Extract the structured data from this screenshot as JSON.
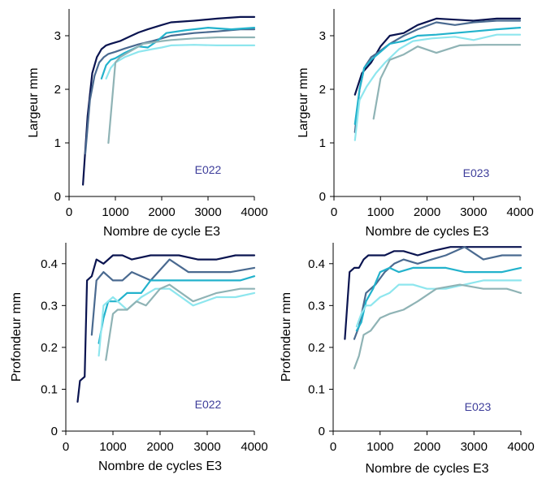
{
  "colors": {
    "navy": "#0a1450",
    "slate": "#4a6a90",
    "cyan": "#22b2cc",
    "pale_cyan": "#8ee6ee",
    "gray_teal": "#8fb3b5",
    "tag": "#3d3d9a"
  },
  "chart_data": [
    {
      "type": "line",
      "tag": "E022",
      "xlabel": "Nombre de cycle E3",
      "ylabel": "Largeur mm",
      "xlim": [
        0,
        4000
      ],
      "ylim": [
        0,
        3.5
      ],
      "xticks": [
        0,
        1000,
        2000,
        3000,
        4000
      ],
      "yticks": [
        0,
        1,
        2,
        3
      ],
      "xtick_labels": [
        "0",
        "1000",
        "2000",
        "3000",
        "4000"
      ],
      "ytick_labels": [
        "0",
        "1",
        "2",
        "3"
      ],
      "grid": false,
      "legend": "none",
      "series": [
        {
          "color": "#0a1450",
          "x": [
            300,
            400,
            500,
            600,
            700,
            800,
            900,
            1100,
            1300,
            1500,
            1700,
            2000,
            2200,
            2700,
            3200,
            3700,
            4000
          ],
          "y": [
            0.22,
            1.5,
            2.3,
            2.6,
            2.75,
            2.82,
            2.85,
            2.9,
            2.98,
            3.06,
            3.12,
            3.2,
            3.25,
            3.28,
            3.32,
            3.35,
            3.35
          ]
        },
        {
          "color": "#4a6a90",
          "x": [
            350,
            450,
            550,
            650,
            750,
            850,
            1000,
            1200,
            1500,
            1800,
            2000,
            2200,
            2700,
            3200,
            3700,
            4000
          ],
          "y": [
            0.8,
            1.8,
            2.25,
            2.5,
            2.6,
            2.66,
            2.7,
            2.76,
            2.84,
            2.9,
            2.95,
            3.0,
            3.05,
            3.08,
            3.12,
            3.12
          ]
        },
        {
          "color": "#22b2cc",
          "x": [
            700,
            800,
            900,
            1000,
            1200,
            1500,
            1700,
            1900,
            2100,
            2500,
            3000,
            3500,
            4000
          ],
          "y": [
            2.2,
            2.45,
            2.55,
            2.58,
            2.68,
            2.8,
            2.78,
            2.9,
            3.05,
            3.1,
            3.15,
            3.12,
            3.15
          ]
        },
        {
          "color": "#8ee6ee",
          "x": [
            800,
            900,
            1000,
            1200,
            1500,
            1800,
            2000,
            2200,
            2700,
            3200,
            3700,
            4000
          ],
          "y": [
            2.2,
            2.4,
            2.5,
            2.6,
            2.7,
            2.75,
            2.78,
            2.82,
            2.83,
            2.82,
            2.82,
            2.82
          ]
        },
        {
          "color": "#8fb3b5",
          "x": [
            850,
            1000,
            1100,
            1300,
            1600,
            2000,
            2200,
            2700,
            3200,
            3700,
            4000
          ],
          "y": [
            1.0,
            2.5,
            2.6,
            2.7,
            2.85,
            2.9,
            2.92,
            2.95,
            2.97,
            2.97,
            2.97
          ]
        }
      ]
    },
    {
      "type": "line",
      "tag": "E023",
      "xlabel": "Nombre de cycles E3",
      "ylabel": "Largeur mm",
      "xlim": [
        0,
        4000
      ],
      "ylim": [
        0,
        3.5
      ],
      "xticks": [
        0,
        1000,
        2000,
        3000,
        4000
      ],
      "yticks": [
        0,
        1,
        2,
        3
      ],
      "xtick_labels": [
        "0",
        "1000",
        "2000",
        "3000",
        "4000"
      ],
      "ytick_labels": [
        "0",
        "1",
        "2",
        "3"
      ],
      "grid": false,
      "legend": "none",
      "series": [
        {
          "color": "#0a1450",
          "x": [
            450,
            600,
            800,
            1000,
            1200,
            1500,
            1800,
            2200,
            2600,
            3000,
            3500,
            4000
          ],
          "y": [
            1.9,
            2.3,
            2.5,
            2.8,
            3.0,
            3.05,
            3.2,
            3.32,
            3.3,
            3.28,
            3.32,
            3.32
          ]
        },
        {
          "color": "#4a6a90",
          "x": [
            450,
            550,
            650,
            800,
            1000,
            1200,
            1500,
            1800,
            2200,
            2600,
            3000,
            3500,
            4000
          ],
          "y": [
            1.2,
            2.0,
            2.4,
            2.6,
            2.72,
            2.85,
            3.0,
            3.12,
            3.25,
            3.2,
            3.25,
            3.28,
            3.28
          ]
        },
        {
          "color": "#22b2cc",
          "x": [
            450,
            550,
            650,
            800,
            1000,
            1200,
            1500,
            1800,
            2200,
            2600,
            3000,
            3500,
            4000
          ],
          "y": [
            1.35,
            2.0,
            2.4,
            2.55,
            2.7,
            2.85,
            2.9,
            3.0,
            3.02,
            3.05,
            3.08,
            3.12,
            3.15
          ]
        },
        {
          "color": "#8ee6ee",
          "x": [
            450,
            550,
            700,
            900,
            1100,
            1400,
            1700,
            2100,
            2600,
            3000,
            3500,
            4000
          ],
          "y": [
            1.05,
            1.8,
            2.05,
            2.3,
            2.5,
            2.75,
            2.9,
            2.95,
            2.98,
            2.92,
            3.02,
            3.02
          ]
        },
        {
          "color": "#8fb3b5",
          "x": [
            850,
            1000,
            1200,
            1500,
            1800,
            2200,
            2700,
            3200,
            3700,
            4000
          ],
          "y": [
            1.45,
            2.2,
            2.55,
            2.65,
            2.8,
            2.68,
            2.82,
            2.83,
            2.83,
            2.83
          ]
        }
      ]
    },
    {
      "type": "line",
      "tag": "E022",
      "xlabel": "Nombre de cycles E3",
      "ylabel": "Profondeur mm",
      "xlim": [
        0,
        4000
      ],
      "ylim": [
        0,
        0.45
      ],
      "xticks": [
        0,
        1000,
        2000,
        3000,
        4000
      ],
      "yticks": [
        0,
        0.1,
        0.2,
        0.3,
        0.4
      ],
      "xtick_labels": [
        "0",
        "1000",
        "2000",
        "3000",
        "4000"
      ],
      "ytick_labels": [
        "0",
        "0.1",
        "0.2",
        "0.3",
        "0.4"
      ],
      "grid": false,
      "legend": "none",
      "series": [
        {
          "color": "#0a1450",
          "x": [
            250,
            300,
            400,
            450,
            550,
            650,
            800,
            1000,
            1200,
            1400,
            1800,
            2100,
            2400,
            2800,
            3200,
            3600,
            4000
          ],
          "y": [
            0.07,
            0.12,
            0.13,
            0.36,
            0.37,
            0.41,
            0.4,
            0.42,
            0.42,
            0.41,
            0.42,
            0.42,
            0.42,
            0.41,
            0.41,
            0.42,
            0.42
          ]
        },
        {
          "color": "#4a6a90",
          "x": [
            550,
            650,
            800,
            1000,
            1200,
            1400,
            1800,
            2200,
            2600,
            3000,
            3500,
            4000
          ],
          "y": [
            0.23,
            0.36,
            0.38,
            0.36,
            0.36,
            0.38,
            0.36,
            0.41,
            0.38,
            0.38,
            0.38,
            0.39
          ]
        },
        {
          "color": "#22b2cc",
          "x": [
            700,
            800,
            900,
            1100,
            1300,
            1600,
            1800,
            2200,
            2700,
            3200,
            3700,
            4000
          ],
          "y": [
            0.21,
            0.27,
            0.31,
            0.31,
            0.33,
            0.33,
            0.36,
            0.36,
            0.36,
            0.36,
            0.36,
            0.37
          ]
        },
        {
          "color": "#8ee6ee",
          "x": [
            700,
            800,
            1000,
            1300,
            1600,
            1900,
            2200,
            2700,
            3200,
            3600,
            4000
          ],
          "y": [
            0.18,
            0.3,
            0.32,
            0.29,
            0.32,
            0.34,
            0.34,
            0.3,
            0.32,
            0.32,
            0.33
          ]
        },
        {
          "color": "#8fb3b5",
          "x": [
            850,
            1000,
            1100,
            1300,
            1500,
            1700,
            2000,
            2200,
            2700,
            3200,
            3700,
            4000
          ],
          "y": [
            0.17,
            0.28,
            0.29,
            0.29,
            0.31,
            0.3,
            0.34,
            0.35,
            0.31,
            0.33,
            0.34,
            0.34
          ]
        }
      ]
    },
    {
      "type": "line",
      "tag": "E023",
      "xlabel": "Nombre de cycles E3",
      "ylabel": "Profondeur mm",
      "xlim": [
        0,
        4000
      ],
      "ylim": [
        0,
        0.45
      ],
      "xticks": [
        0,
        1000,
        2000,
        3000,
        4000
      ],
      "yticks": [
        0,
        0.1,
        0.2,
        0.3,
        0.4
      ],
      "xtick_labels": [
        "0",
        "1000",
        "2000",
        "3000",
        "4000"
      ],
      "ytick_labels": [
        "0",
        "0.1",
        "0.2",
        "0.3",
        "0.4"
      ],
      "grid": false,
      "legend": "none",
      "series": [
        {
          "color": "#0a1450",
          "x": [
            250,
            350,
            450,
            550,
            650,
            750,
            900,
            1100,
            1300,
            1500,
            1800,
            2100,
            2500,
            2800,
            3200,
            3600,
            4000
          ],
          "y": [
            0.22,
            0.38,
            0.39,
            0.39,
            0.41,
            0.42,
            0.42,
            0.42,
            0.43,
            0.43,
            0.42,
            0.43,
            0.44,
            0.44,
            0.44,
            0.44,
            0.44
          ]
        },
        {
          "color": "#4a6a90",
          "x": [
            450,
            550,
            700,
            900,
            1100,
            1300,
            1500,
            1800,
            2100,
            2400,
            2800,
            3200,
            3600,
            4000
          ],
          "y": [
            0.22,
            0.25,
            0.33,
            0.35,
            0.38,
            0.4,
            0.41,
            0.4,
            0.41,
            0.42,
            0.44,
            0.41,
            0.42,
            0.42
          ]
        },
        {
          "color": "#22b2cc",
          "x": [
            500,
            600,
            700,
            850,
            1000,
            1200,
            1400,
            1700,
            2000,
            2400,
            2800,
            3200,
            3600,
            4000
          ],
          "y": [
            0.24,
            0.26,
            0.31,
            0.34,
            0.38,
            0.39,
            0.38,
            0.39,
            0.39,
            0.39,
            0.38,
            0.38,
            0.38,
            0.39
          ]
        },
        {
          "color": "#8ee6ee",
          "x": [
            500,
            600,
            700,
            800,
            1000,
            1200,
            1400,
            1700,
            2000,
            2400,
            2800,
            3200,
            3600,
            4000
          ],
          "y": [
            0.25,
            0.28,
            0.3,
            0.3,
            0.32,
            0.33,
            0.35,
            0.35,
            0.34,
            0.34,
            0.35,
            0.36,
            0.36,
            0.36
          ]
        },
        {
          "color": "#8fb3b5",
          "x": [
            450,
            550,
            650,
            800,
            1000,
            1200,
            1500,
            1800,
            2200,
            2700,
            3200,
            3700,
            4000
          ],
          "y": [
            0.15,
            0.18,
            0.23,
            0.24,
            0.27,
            0.28,
            0.29,
            0.31,
            0.34,
            0.35,
            0.34,
            0.34,
            0.33
          ]
        }
      ]
    }
  ]
}
